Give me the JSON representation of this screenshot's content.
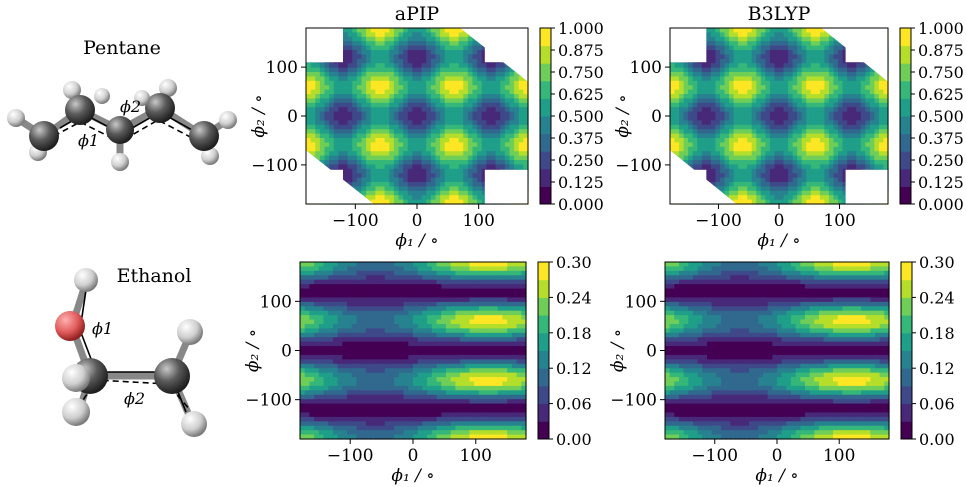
{
  "molecules": [
    {
      "name": "Pentane",
      "angle_labels": [
        "ϕ1",
        "ϕ2"
      ]
    },
    {
      "name": "Ethanol",
      "angle_labels": [
        "ϕ1",
        "ϕ2"
      ]
    }
  ],
  "colors": {
    "colormap": [
      "#440154",
      "#482878",
      "#3e4989",
      "#31688e",
      "#26828e",
      "#1f9e89",
      "#35b779",
      "#6ece58",
      "#b5de2b",
      "#fde725"
    ],
    "carbon": "#4a4a4a",
    "hydrogen": "#d8d8d8",
    "oxygen": "#e06060"
  },
  "chart_data": [
    {
      "type": "heatmap",
      "molecule": "Pentane",
      "title": "aPIP",
      "xlabel": "ϕ1 / ∘",
      "ylabel": "ϕ2 / ∘",
      "xlim": [
        -180,
        180
      ],
      "ylim": [
        -180,
        180
      ],
      "xticks": [
        -100,
        0,
        100
      ],
      "yticks": [
        100,
        0,
        -100
      ],
      "colorbar_range": [
        0,
        1
      ],
      "colorbar_ticks": [
        "1.000",
        "0.875",
        "0.750",
        "0.625",
        "0.500",
        "0.375",
        "0.250",
        "0.125",
        "0.000"
      ],
      "minima": [
        {
          "x": -120,
          "y": 120
        },
        {
          "x": 0,
          "y": 120
        },
        {
          "x": 120,
          "y": 120
        },
        {
          "x": -120,
          "y": 0
        },
        {
          "x": 0,
          "y": 0
        },
        {
          "x": 120,
          "y": 0
        },
        {
          "x": -120,
          "y": -120
        },
        {
          "x": 0,
          "y": -120
        },
        {
          "x": 120,
          "y": -120
        }
      ],
      "missing_regions": [
        {
          "x": [
            -180,
            -120
          ],
          "y": [
            180,
            110
          ]
        },
        {
          "x": [
            110,
            180
          ],
          "y": [
            180,
            110
          ]
        },
        {
          "x": [
            -180,
            -120
          ],
          "y": [
            -110,
            -180
          ]
        },
        {
          "x": [
            110,
            180
          ],
          "y": [
            -110,
            -180
          ]
        }
      ]
    },
    {
      "type": "heatmap",
      "molecule": "Pentane",
      "title": "B3LYP",
      "xlabel": "ϕ1 / ∘",
      "ylabel": "ϕ2 / ∘",
      "xlim": [
        -180,
        180
      ],
      "ylim": [
        -180,
        180
      ],
      "xticks": [
        -100,
        0,
        100
      ],
      "yticks": [
        100,
        0,
        -100
      ],
      "colorbar_range": [
        0,
        1
      ],
      "colorbar_ticks": [
        "1.000",
        "0.875",
        "0.750",
        "0.625",
        "0.500",
        "0.375",
        "0.250",
        "0.125",
        "0.000"
      ],
      "minima": [
        {
          "x": -120,
          "y": 120
        },
        {
          "x": 0,
          "y": 120
        },
        {
          "x": 120,
          "y": 120
        },
        {
          "x": -120,
          "y": 0
        },
        {
          "x": 0,
          "y": 0
        },
        {
          "x": 120,
          "y": 0
        },
        {
          "x": -120,
          "y": -120
        },
        {
          "x": 0,
          "y": -120
        },
        {
          "x": 120,
          "y": -120
        }
      ],
      "missing_regions": [
        {
          "x": [
            -180,
            -120
          ],
          "y": [
            180,
            110
          ]
        },
        {
          "x": [
            110,
            180
          ],
          "y": [
            180,
            110
          ]
        },
        {
          "x": [
            -180,
            -120
          ],
          "y": [
            -110,
            -180
          ]
        },
        {
          "x": [
            110,
            180
          ],
          "y": [
            -110,
            -180
          ]
        }
      ]
    },
    {
      "type": "heatmap",
      "molecule": "Ethanol",
      "title": "",
      "xlabel": "ϕ1 / ∘",
      "ylabel": "ϕ2 / ∘",
      "xlim": [
        -180,
        180
      ],
      "ylim": [
        -180,
        180
      ],
      "xticks": [
        -100,
        0,
        100
      ],
      "yticks": [
        100,
        0,
        -100
      ],
      "colorbar_range": [
        0,
        0.3
      ],
      "colorbar_ticks": [
        "0.30",
        "0.24",
        "0.18",
        "0.12",
        "0.06",
        "0.00"
      ],
      "minima": [
        {
          "x": 120,
          "y": 120
        },
        {
          "x": 120,
          "y": 0
        },
        {
          "x": 120,
          "y": -120
        },
        {
          "x": -60,
          "y": 120
        },
        {
          "x": -60,
          "y": 0
        },
        {
          "x": -60,
          "y": -120
        }
      ],
      "missing_regions": []
    },
    {
      "type": "heatmap",
      "molecule": "Ethanol",
      "title": "",
      "xlabel": "ϕ1 / ∘",
      "ylabel": "ϕ2 / ∘",
      "xlim": [
        -180,
        180
      ],
      "ylim": [
        -180,
        180
      ],
      "xticks": [
        -100,
        0,
        100
      ],
      "yticks": [
        100,
        0,
        -100
      ],
      "colorbar_range": [
        0,
        0.3
      ],
      "colorbar_ticks": [
        "0.30",
        "0.24",
        "0.18",
        "0.12",
        "0.06",
        "0.00"
      ],
      "minima": [
        {
          "x": 120,
          "y": 120
        },
        {
          "x": 120,
          "y": 0
        },
        {
          "x": 120,
          "y": -120
        },
        {
          "x": -60,
          "y": 120
        },
        {
          "x": -60,
          "y": 0
        },
        {
          "x": -60,
          "y": -120
        }
      ],
      "missing_regions": []
    }
  ]
}
